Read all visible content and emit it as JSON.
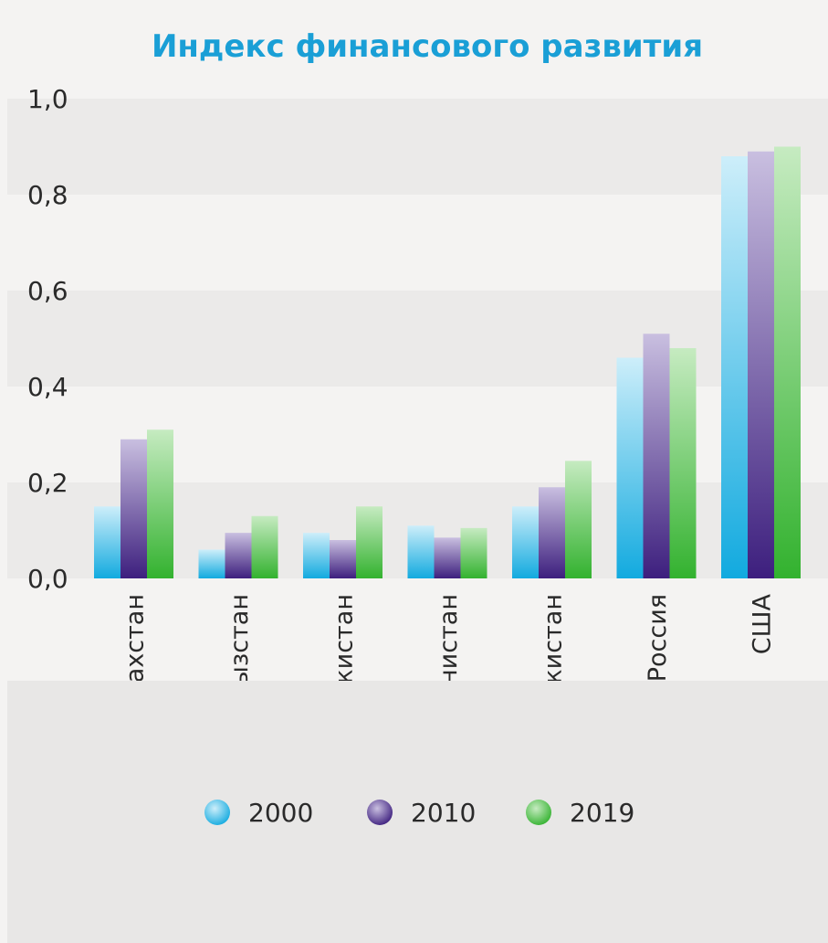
{
  "chart_data": {
    "type": "bar",
    "title": "Индекс финансового развития",
    "xlabel": "",
    "ylabel": "",
    "ylim": [
      0,
      1.0
    ],
    "yticks": [
      "0,0",
      "0,2",
      "0,4",
      "0,6",
      "0,8",
      "1,0"
    ],
    "categories": [
      "Казахстан",
      "Кыргызстан",
      "Таджикистан",
      "Туркменистан",
      "Узбекистан",
      "Россия",
      "США"
    ],
    "series": [
      {
        "name": "2000",
        "values": [
          0.15,
          0.06,
          0.095,
          0.11,
          0.15,
          0.46,
          0.88
        ]
      },
      {
        "name": "2010",
        "values": [
          0.29,
          0.095,
          0.08,
          0.085,
          0.19,
          0.51,
          0.89
        ]
      },
      {
        "name": "2019",
        "values": [
          0.31,
          0.13,
          0.15,
          0.105,
          0.245,
          0.48,
          0.9
        ]
      }
    ],
    "grid": "alternating horizontal bands",
    "legend_position": "bottom",
    "colors": {
      "2000": "#4ec3ec",
      "2010": "#5b3d9a",
      "2019": "#5dc35a",
      "title": "#1a9fd6",
      "band": "#ebeae9",
      "background": "#f4f3f2"
    }
  }
}
